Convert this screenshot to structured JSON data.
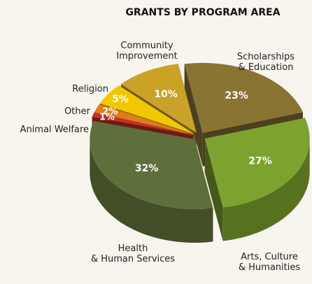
{
  "chart_data": {
    "type": "pie",
    "title": "GRANTS BY PROGRAM AREA",
    "categories": [
      "Scholarships\n& Education",
      "Arts, Culture\n& Humanities",
      "Health\n& Human Services",
      "Animal Welfare",
      "Other",
      "Religion",
      "Community\nImprovement"
    ],
    "values": [
      23,
      27,
      32,
      1,
      2,
      5,
      10
    ],
    "value_labels": [
      "23%",
      "27%",
      "32%",
      "1%",
      "2%",
      "5%",
      "10%"
    ],
    "colors": [
      "#8a7434",
      "#7ea22f",
      "#5f6f3b",
      "#c7302a",
      "#e27b1c",
      "#f1c800",
      "#c9a227"
    ]
  }
}
